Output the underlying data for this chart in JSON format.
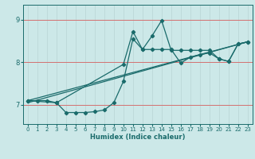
{
  "xlabel": "Humidex (Indice chaleur)",
  "bg_color": "#cce8e8",
  "line_color": "#1a6b6b",
  "grid_color_v": "#b8d4d4",
  "grid_color_h": "#d47070",
  "xlim": [
    -0.5,
    23.5
  ],
  "ylim": [
    6.55,
    9.35
  ],
  "yticks": [
    7,
    8,
    9
  ],
  "xticks": [
    0,
    1,
    2,
    3,
    4,
    5,
    6,
    7,
    8,
    9,
    10,
    11,
    12,
    13,
    14,
    15,
    16,
    17,
    18,
    19,
    20,
    21,
    22,
    23
  ],
  "series": [
    {
      "x": [
        0,
        1,
        2,
        3,
        4,
        5,
        6,
        7,
        8,
        9,
        10,
        11,
        12,
        13,
        14,
        15,
        16,
        17,
        18,
        19,
        20,
        21,
        22,
        23
      ],
      "y": [
        7.1,
        7.1,
        7.1,
        7.05,
        6.82,
        6.82,
        6.82,
        6.84,
        6.88,
        7.05,
        7.55,
        8.55,
        8.3,
        8.3,
        8.3,
        8.3,
        7.98,
        8.12,
        8.18,
        8.22,
        8.08,
        8.02,
        8.43,
        8.48
      ],
      "has_markers": true
    },
    {
      "x": [
        0,
        3,
        10,
        11,
        12,
        13,
        14,
        15,
        16,
        17,
        18,
        19,
        20,
        21,
        22,
        23
      ],
      "y": [
        7.1,
        7.05,
        7.95,
        8.72,
        8.3,
        8.62,
        8.98,
        8.28,
        8.28,
        8.28,
        8.28,
        8.28,
        8.08,
        8.02,
        8.43,
        8.48
      ],
      "has_markers": true
    },
    {
      "x": [
        0,
        23
      ],
      "y": [
        7.1,
        8.48
      ],
      "has_markers": false
    },
    {
      "x": [
        0,
        23
      ],
      "y": [
        7.05,
        8.48
      ],
      "has_markers": false
    }
  ]
}
